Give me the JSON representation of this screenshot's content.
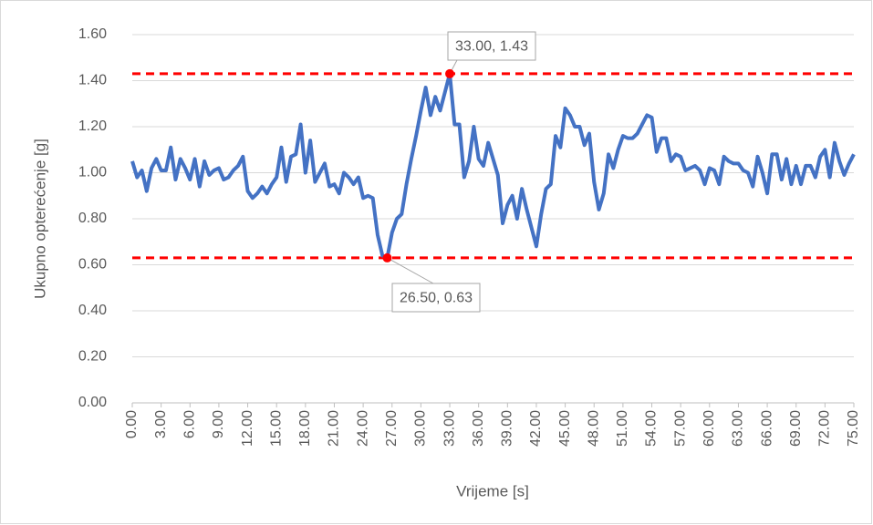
{
  "chart_data": {
    "type": "line",
    "y_label": "Ukupno opterećenje [g]",
    "x_label": "Vrijeme [s]",
    "x": [
      0,
      0.5,
      1,
      1.5,
      2,
      2.5,
      3,
      3.5,
      4,
      4.5,
      5,
      5.5,
      6,
      6.5,
      7,
      7.5,
      8,
      8.5,
      9,
      9.5,
      10,
      10.5,
      11,
      11.5,
      12,
      12.5,
      13,
      13.5,
      14,
      14.5,
      15,
      15.5,
      16,
      16.5,
      17,
      17.5,
      18,
      18.5,
      19,
      19.5,
      20,
      20.5,
      21,
      21.5,
      22,
      22.5,
      23,
      23.5,
      24,
      24.5,
      25,
      25.5,
      26,
      26.5,
      27,
      27.5,
      28,
      28.5,
      29,
      29.5,
      30,
      30.5,
      31,
      31.5,
      32,
      32.5,
      33,
      33.5,
      34,
      34.5,
      35,
      35.5,
      36,
      36.5,
      37,
      37.5,
      38,
      38.5,
      39,
      39.5,
      40,
      40.5,
      41,
      41.5,
      42,
      42.5,
      43,
      43.5,
      44,
      44.5,
      45,
      45.5,
      46,
      46.5,
      47,
      47.5,
      48,
      48.5,
      49,
      49.5,
      50,
      50.5,
      51,
      51.5,
      52,
      52.5,
      53,
      53.5,
      54,
      54.5,
      55,
      55.5,
      56,
      56.5,
      57,
      57.5,
      58,
      58.5,
      59,
      59.5,
      60,
      60.5,
      61,
      61.5,
      62,
      62.5,
      63,
      63.5,
      64,
      64.5,
      65,
      65.5,
      66,
      66.5,
      67,
      67.5,
      68,
      68.5,
      69,
      69.5,
      70,
      70.5,
      71,
      71.5,
      72,
      72.5,
      73,
      73.5,
      74,
      74.5,
      75
    ],
    "series": [
      {
        "name": "Ukupno opterećenje",
        "color": "#4472c4",
        "values": [
          1.05,
          0.98,
          1.01,
          0.92,
          1.02,
          1.06,
          1.01,
          1.01,
          1.11,
          0.97,
          1.06,
          1.02,
          0.97,
          1.06,
          0.94,
          1.05,
          0.99,
          1.01,
          1.02,
          0.97,
          0.98,
          1.01,
          1.03,
          1.07,
          0.92,
          0.89,
          0.91,
          0.94,
          0.91,
          0.95,
          0.98,
          1.11,
          0.96,
          1.07,
          1.08,
          1.21,
          1.0,
          1.14,
          0.96,
          1.0,
          1.04,
          0.94,
          0.95,
          0.91,
          1.0,
          0.98,
          0.95,
          0.98,
          0.89,
          0.9,
          0.89,
          0.73,
          0.64,
          0.63,
          0.74,
          0.8,
          0.82,
          0.95,
          1.06,
          1.16,
          1.27,
          1.37,
          1.25,
          1.33,
          1.27,
          1.35,
          1.43,
          1.21,
          1.21,
          0.98,
          1.05,
          1.2,
          1.06,
          1.03,
          1.13,
          1.06,
          0.99,
          0.78,
          0.86,
          0.9,
          0.8,
          0.93,
          0.84,
          0.76,
          0.68,
          0.82,
          0.93,
          0.95,
          1.16,
          1.11,
          1.28,
          1.25,
          1.2,
          1.2,
          1.12,
          1.17,
          0.96,
          0.84,
          0.91,
          1.08,
          1.02,
          1.1,
          1.16,
          1.15,
          1.15,
          1.17,
          1.21,
          1.25,
          1.24,
          1.09,
          1.15,
          1.15,
          1.05,
          1.08,
          1.07,
          1.01,
          1.02,
          1.03,
          1.01,
          0.95,
          1.02,
          1.01,
          0.95,
          1.07,
          1.05,
          1.04,
          1.04,
          1.01,
          1.0,
          0.94,
          1.07,
          1.0,
          0.91,
          1.08,
          1.08,
          0.97,
          1.06,
          0.95,
          1.03,
          0.95,
          1.03,
          1.03,
          0.98,
          1.07,
          1.1,
          0.98,
          1.13,
          1.05,
          0.99,
          1.04,
          1.08
        ]
      }
    ],
    "xlim": [
      0,
      75
    ],
    "xticks": [
      {
        "value": 0,
        "label": "0.00"
      },
      {
        "value": 3,
        "label": "3.00"
      },
      {
        "value": 6,
        "label": "6.00"
      },
      {
        "value": 9,
        "label": "9.00"
      },
      {
        "value": 12,
        "label": "12.00"
      },
      {
        "value": 15,
        "label": "15.00"
      },
      {
        "value": 18,
        "label": "18.00"
      },
      {
        "value": 21,
        "label": "21.00"
      },
      {
        "value": 24,
        "label": "24.00"
      },
      {
        "value": 27,
        "label": "27.00"
      },
      {
        "value": 30,
        "label": "30.00"
      },
      {
        "value": 33,
        "label": "33.00"
      },
      {
        "value": 36,
        "label": "36.00"
      },
      {
        "value": 39,
        "label": "39.00"
      },
      {
        "value": 42,
        "label": "42.00"
      },
      {
        "value": 45,
        "label": "45.00"
      },
      {
        "value": 48,
        "label": "48.00"
      },
      {
        "value": 51,
        "label": "51.00"
      },
      {
        "value": 54,
        "label": "54.00"
      },
      {
        "value": 57,
        "label": "57.00"
      },
      {
        "value": 60,
        "label": "60.00"
      },
      {
        "value": 63,
        "label": "63.00"
      },
      {
        "value": 66,
        "label": "66.00"
      },
      {
        "value": 69,
        "label": "69.00"
      },
      {
        "value": 72,
        "label": "72.00"
      },
      {
        "value": 75,
        "label": "75.00"
      }
    ],
    "ylim": [
      0,
      1.6
    ],
    "yticks": [
      {
        "value": 0,
        "label": "0.00"
      },
      {
        "value": 0.2,
        "label": "0.20"
      },
      {
        "value": 0.4,
        "label": "0.40"
      },
      {
        "value": 0.6,
        "label": "0.60"
      },
      {
        "value": 0.8,
        "label": "0.80"
      },
      {
        "value": 1,
        "label": "1.00"
      },
      {
        "value": 1.2,
        "label": "1.20"
      },
      {
        "value": 1.4,
        "label": "1.40"
      },
      {
        "value": 1.6,
        "label": "1.60"
      }
    ],
    "grid": true,
    "reference_lines": [
      {
        "value": 1.43,
        "color": "#ff0000"
      },
      {
        "value": 0.63,
        "color": "#ff0000"
      }
    ],
    "annotations": [
      {
        "text": "33.00, 1.43",
        "x": 33,
        "y": 1.43
      },
      {
        "text": "26.50, 0.63",
        "x": 26.5,
        "y": 0.63
      }
    ]
  }
}
